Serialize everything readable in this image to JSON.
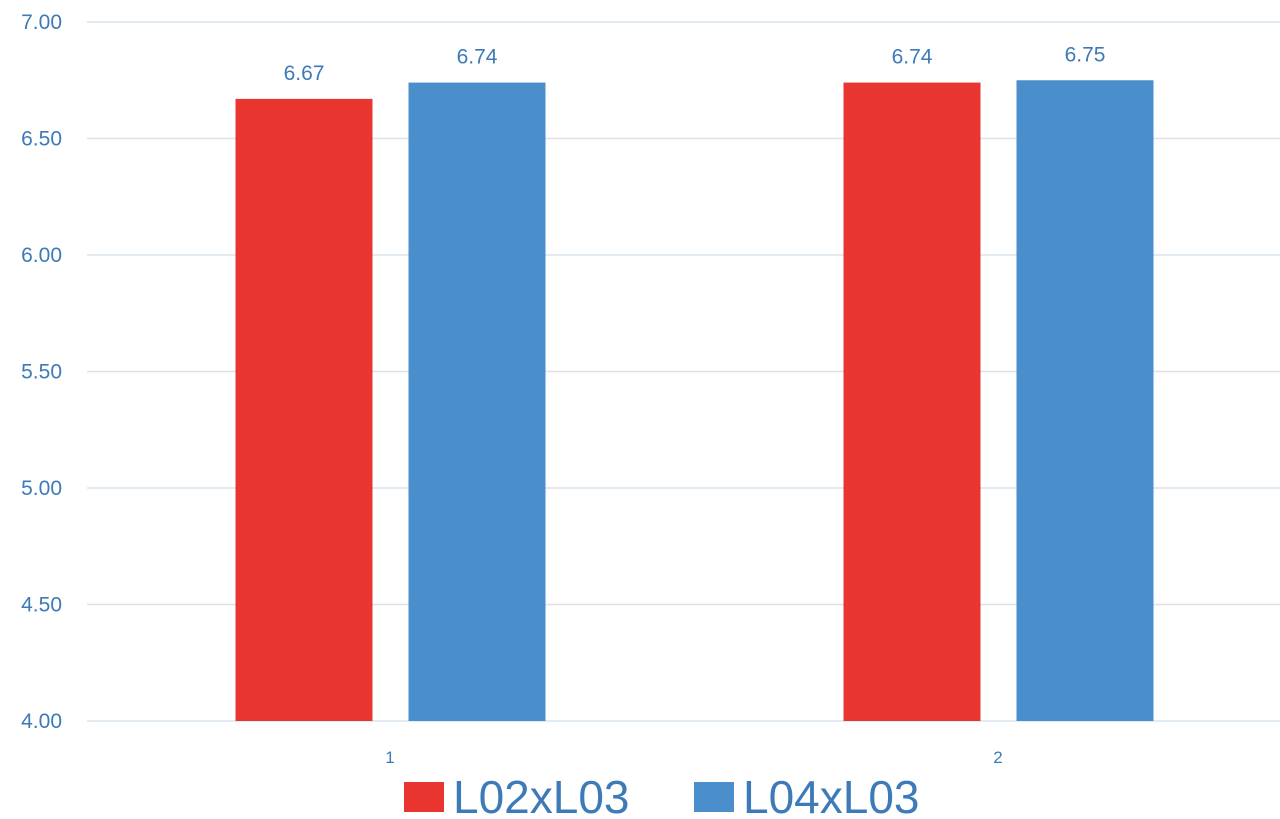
{
  "chart_data": {
    "type": "bar",
    "categories": [
      "1",
      "2"
    ],
    "series": [
      {
        "name": "L02xL03",
        "values": [
          6.67,
          6.74
        ],
        "color": "#e8352f"
      },
      {
        "name": "L04xL03",
        "values": [
          6.74,
          6.75
        ],
        "color": "#4a8fcb"
      }
    ],
    "y_ticks": [
      "4.00",
      "4.50",
      "5.00",
      "5.50",
      "6.00",
      "6.50",
      "7.00"
    ],
    "ylim": [
      4.0,
      7.0
    ],
    "grid": true,
    "legend_position": "bottom",
    "label_color": "#3d7ab8"
  }
}
